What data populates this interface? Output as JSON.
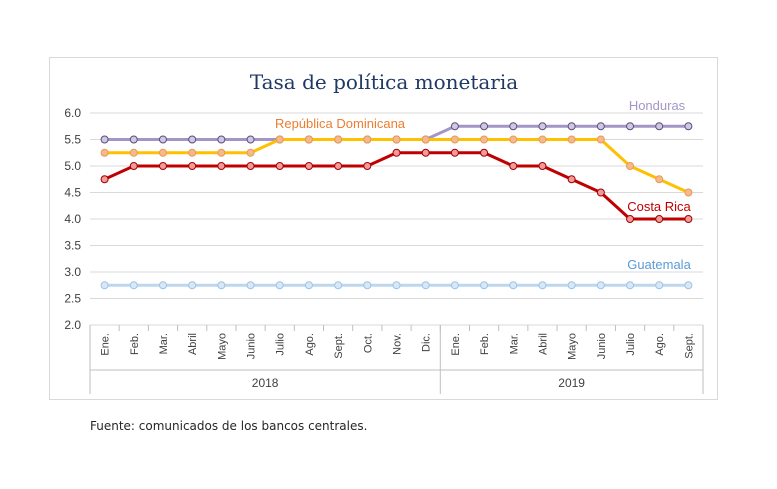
{
  "chart_data": {
    "type": "line",
    "title": "Tasa de política monetaria",
    "ylim": [
      2.0,
      6.0
    ],
    "yticks": [
      "2.0",
      "2.5",
      "3.0",
      "3.5",
      "4.0",
      "4.5",
      "5.0",
      "5.5",
      "6.0"
    ],
    "categories": [
      "Ene.",
      "Feb.",
      "Mar.",
      "Abril",
      "Mayo",
      "Junio",
      "Julio",
      "Ago.",
      "Sept.",
      "Oct.",
      "Nov.",
      "Dic.",
      "Ene.",
      "Feb.",
      "Mar.",
      "Abril",
      "Mayo",
      "Junio",
      "Julio",
      "Ago.",
      "Sept."
    ],
    "year_groups": [
      {
        "label": "2018",
        "count": 12
      },
      {
        "label": "2019",
        "count": 9
      }
    ],
    "grid": true,
    "series": [
      {
        "name": "Honduras",
        "color": "#a396c6",
        "marker_fill": "#cfc8e3",
        "marker_stroke": "#5a4f7c",
        "values": [
          5.5,
          5.5,
          5.5,
          5.5,
          5.5,
          5.5,
          5.5,
          5.5,
          5.5,
          5.5,
          5.5,
          5.5,
          5.75,
          5.75,
          5.75,
          5.75,
          5.75,
          5.75,
          5.75,
          5.75,
          5.75
        ]
      },
      {
        "name": "República Dominicana",
        "color": "#ffc000",
        "marker_fill": "#f7b987",
        "marker_stroke": "#e69a5c",
        "values": [
          5.25,
          5.25,
          5.25,
          5.25,
          5.25,
          5.25,
          5.5,
          5.5,
          5.5,
          5.5,
          5.5,
          5.5,
          5.5,
          5.5,
          5.5,
          5.5,
          5.5,
          5.5,
          5.0,
          4.75,
          4.5
        ]
      },
      {
        "name": "Costa Rica",
        "color": "#c00000",
        "marker_fill": "#f29a9a",
        "marker_stroke": "#a00000",
        "values": [
          4.75,
          5.0,
          5.0,
          5.0,
          5.0,
          5.0,
          5.0,
          5.0,
          5.0,
          5.0,
          5.25,
          5.25,
          5.25,
          5.25,
          5.0,
          5.0,
          4.75,
          4.5,
          4.0,
          4.0,
          4.0
        ]
      },
      {
        "name": "Guatemala",
        "color": "#bdd7ee",
        "marker_fill": "#dae8f5",
        "marker_stroke": "#9dc3e6",
        "values": [
          2.75,
          2.75,
          2.75,
          2.75,
          2.75,
          2.75,
          2.75,
          2.75,
          2.75,
          2.75,
          2.75,
          2.75,
          2.75,
          2.75,
          2.75,
          2.75,
          2.75,
          2.75,
          2.75,
          2.75,
          2.75
        ]
      }
    ],
    "series_label_colors": {
      "Honduras": "#a396c6",
      "República Dominicana": "#ed7d31",
      "Costa Rica": "#c00000",
      "Guatemala": "#5b9bd5"
    }
  },
  "source_note": "Fuente: comunicados de los bancos centrales."
}
